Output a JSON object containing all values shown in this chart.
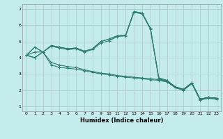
{
  "xlabel": "Humidex (Indice chaleur)",
  "bg_color": "#c5ecec",
  "grid_color": "#b0cccc",
  "line_color": "#2e7d6e",
  "xlim": [
    -0.5,
    23.5
  ],
  "ylim": [
    0.7,
    7.3
  ],
  "xticks": [
    0,
    1,
    2,
    3,
    4,
    5,
    6,
    7,
    8,
    9,
    10,
    11,
    12,
    13,
    14,
    15,
    16,
    17,
    18,
    19,
    20,
    21,
    22,
    23
  ],
  "yticks": [
    1,
    2,
    3,
    4,
    5,
    6,
    7
  ],
  "series": [
    [
      4.15,
      4.65,
      4.35,
      4.75,
      4.65,
      4.55,
      4.6,
      4.4,
      4.55,
      5.0,
      5.15,
      5.35,
      5.4,
      6.85,
      6.75,
      5.8,
      2.75,
      2.6,
      2.2,
      2.05,
      2.45,
      1.45,
      1.55,
      1.5
    ],
    [
      4.15,
      4.65,
      4.35,
      4.75,
      4.65,
      4.55,
      4.6,
      4.4,
      4.55,
      5.0,
      5.15,
      5.35,
      5.4,
      6.85,
      6.75,
      5.8,
      2.75,
      2.6,
      2.2,
      2.05,
      2.45,
      1.45,
      1.55,
      1.5
    ],
    [
      4.15,
      4.35,
      4.35,
      4.7,
      4.6,
      4.5,
      4.55,
      4.35,
      4.5,
      4.9,
      5.05,
      5.3,
      5.35,
      6.8,
      6.7,
      5.75,
      2.7,
      2.55,
      2.15,
      2.0,
      2.4,
      1.4,
      1.5,
      1.45
    ],
    [
      4.15,
      4.0,
      4.35,
      3.55,
      3.4,
      3.35,
      3.3,
      3.2,
      3.1,
      3.0,
      2.95,
      2.85,
      2.8,
      2.75,
      2.7,
      2.65,
      2.6,
      2.5,
      2.15,
      2.0,
      2.4,
      1.4,
      1.5,
      1.45
    ],
    [
      4.15,
      4.0,
      4.35,
      3.7,
      3.55,
      3.45,
      3.4,
      3.25,
      3.15,
      3.05,
      3.0,
      2.9,
      2.85,
      2.8,
      2.75,
      2.7,
      2.65,
      2.55,
      2.2,
      2.05,
      2.45,
      1.45,
      1.55,
      1.5
    ]
  ]
}
